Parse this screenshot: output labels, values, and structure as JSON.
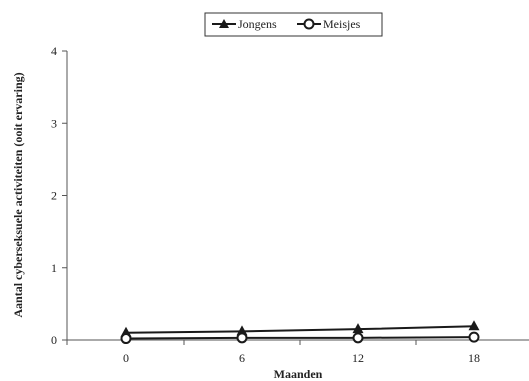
{
  "chart_data": {
    "type": "line",
    "xlabel": "Maanden",
    "ylabel": "Aantal cyberseksuele activiteiten (ooit ervaring)",
    "x": [
      0,
      6,
      12,
      18
    ],
    "x_tick_labels": [
      "0",
      "6",
      "12",
      "18"
    ],
    "y_tick_labels": [
      "0",
      "1",
      "2",
      "3",
      "4"
    ],
    "ylim": [
      0,
      4
    ],
    "grid": false,
    "legend_position": "top",
    "series": [
      {
        "name": "Jongens",
        "marker": "filled-triangle",
        "values": [
          0.1,
          0.12,
          0.15,
          0.19
        ]
      },
      {
        "name": "Meisjes",
        "marker": "open-circle",
        "values": [
          0.02,
          0.03,
          0.03,
          0.04
        ]
      }
    ]
  },
  "colors": {
    "line": "#1a1a1a",
    "axis": "#555555",
    "background": "#ffffff"
  }
}
